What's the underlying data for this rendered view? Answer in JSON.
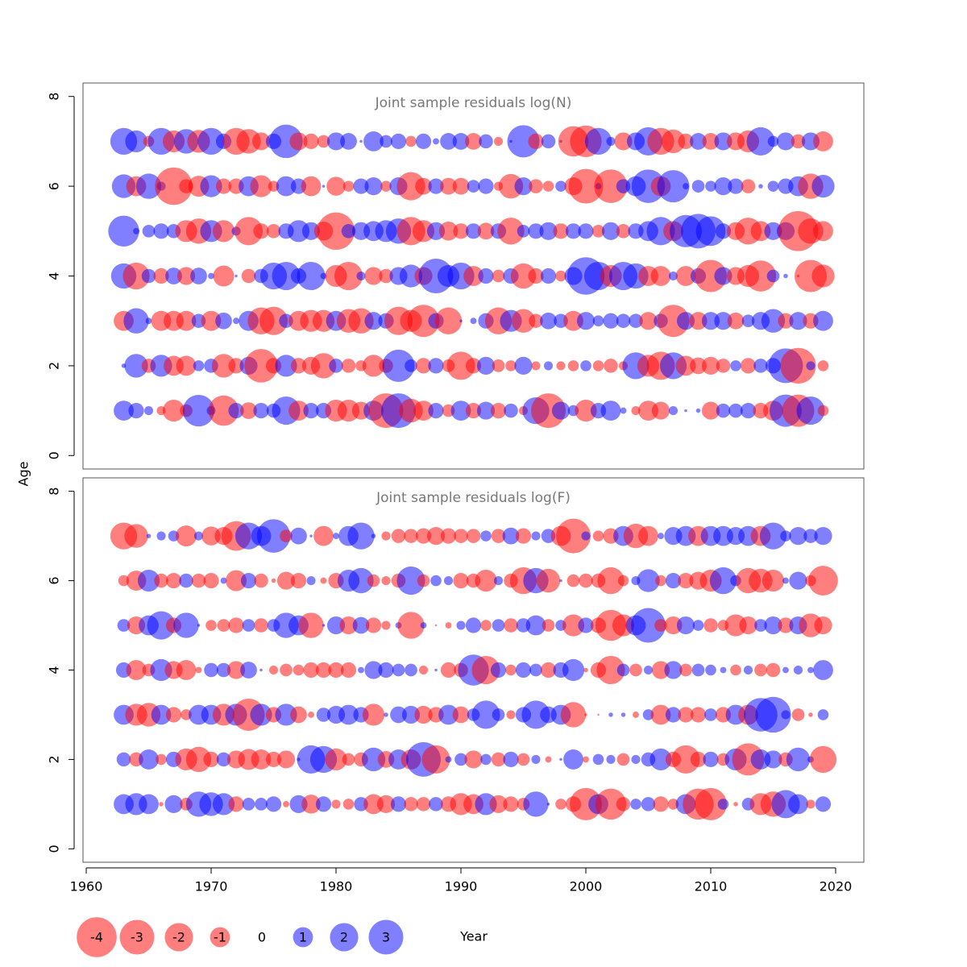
{
  "axis_labels": {
    "y": "Age",
    "x": "Year"
  },
  "legend": [
    -4,
    -3,
    -2,
    -1,
    0,
    1,
    2,
    3
  ],
  "pos_color": "#0000ff",
  "neg_color": "#ff0000",
  "alpha": 0.5,
  "chart_data": [
    {
      "type": "bubble",
      "title": "Joint sample residuals log(N)",
      "xlim": [
        1959.74,
        2022.26
      ],
      "ylim": [
        -0.3,
        8.3
      ],
      "yticks": [
        0,
        2,
        4,
        6,
        8
      ],
      "x": [
        1963,
        1964,
        1965,
        1966,
        1967,
        1968,
        1969,
        1970,
        1971,
        1972,
        1973,
        1974,
        1975,
        1976,
        1977,
        1978,
        1979,
        1980,
        1981,
        1982,
        1983,
        1984,
        1985,
        1986,
        1987,
        1988,
        1989,
        1990,
        1991,
        1992,
        1993,
        1994,
        1995,
        1996,
        1997,
        1998,
        1999,
        2000,
        2001,
        2002,
        2003,
        2004,
        2005,
        2006,
        2007,
        2008,
        2009,
        2010,
        2011,
        2012,
        2013,
        2014,
        2015,
        2016,
        2017,
        2018,
        2019
      ],
      "ages": [
        1,
        2,
        3,
        4,
        5,
        6,
        7
      ],
      "values": [
        [
          1.0,
          0.6,
          0.2,
          -0.2,
          -1.2,
          -0.4,
          2.5,
          0.2,
          -2.3,
          0.6,
          -0.7,
          0.6,
          0.5,
          2.0,
          -1.0,
          0.6,
          0.6,
          -1.2,
          -1.2,
          -0.8,
          1.0,
          -3.0,
          3.0,
          -1.4,
          -1.0,
          0.6,
          -0.4,
          1.0,
          -0.6,
          0.8,
          -0.6,
          0.5,
          -0.2,
          1.8,
          -3.0,
          0.8,
          0.3,
          -1.2,
          0.6,
          1.0,
          0.1,
          -0.2,
          -1.0,
          -0.8,
          0.2,
          0.02,
          0.05,
          -0.8,
          0.5,
          0.5,
          0.6,
          -0.6,
          -1.0,
          2.6,
          -2.6,
          2.0,
          -0.3
        ],
        [
          0.05,
          1.4,
          -0.5,
          1.2,
          -1.0,
          -1.0,
          0.3,
          0.5,
          -1.4,
          -0.6,
          0.8,
          -2.8,
          -0.6,
          1.2,
          -0.6,
          -0.8,
          -1.6,
          0.5,
          -0.5,
          -0.3,
          -1.2,
          -0.5,
          2.6,
          0.4,
          -0.6,
          0.6,
          -0.4,
          -2.0,
          -0.6,
          0.8,
          -0.4,
          -0.3,
          0.8,
          -0.2,
          0.2,
          -0.2,
          -0.3,
          0.3,
          -0.3,
          -0.5,
          -0.2,
          1.8,
          -1.2,
          -2.0,
          1.8,
          -1.0,
          -0.7,
          -0.8,
          -0.5,
          0.3,
          -0.6,
          0.5,
          0.6,
          3.0,
          -3.2,
          0.2,
          -0.3
        ],
        [
          -1.0,
          1.6,
          0.1,
          -1.0,
          -1.0,
          -1.0,
          0.5,
          -1.0,
          0.7,
          0.1,
          1.0,
          -1.8,
          -2.0,
          0.5,
          -1.0,
          -1.2,
          -1.2,
          1.0,
          -1.4,
          -1.6,
          0.8,
          0.6,
          -2.0,
          -1.2,
          -2.6,
          0.6,
          -1.8,
          0.02,
          0.1,
          0.6,
          -1.8,
          1.2,
          -1.4,
          -0.5,
          0.7,
          0.5,
          -1.0,
          0.8,
          0.3,
          0.6,
          0.5,
          0.5,
          -0.8,
          0.5,
          -2.6,
          0.8,
          -0.8,
          0.8,
          0.8,
          -0.7,
          0.4,
          0.8,
          1.4,
          -0.6,
          0.8,
          -0.6,
          1.0
        ],
        [
          1.6,
          -1.8,
          0.5,
          -0.6,
          0.7,
          -0.8,
          0.7,
          0.1,
          -1.1,
          0.02,
          -0.5,
          0.5,
          1.8,
          2.0,
          0.6,
          2.0,
          0.1,
          -1.2,
          -2.0,
          0.2,
          -0.8,
          -0.5,
          0.8,
          1.3,
          -0.8,
          3.0,
          1.2,
          1.8,
          -1.0,
          0.6,
          -0.4,
          0.6,
          -1.6,
          -0.6,
          0.6,
          -0.3,
          0.8,
          3.5,
          2.0,
          -1.2,
          2.0,
          1.6,
          -1.0,
          -1.0,
          0.2,
          -1.0,
          0.6,
          -2.6,
          0.8,
          -0.8,
          -1.2,
          -2.4,
          0.4,
          0.05,
          -0.02,
          -2.6,
          -1.3
        ],
        [
          2.4,
          0.1,
          0.4,
          0.6,
          0.5,
          -1.2,
          -1.6,
          1.2,
          -1.2,
          0.2,
          -2.0,
          -0.6,
          -0.5,
          0.6,
          1.2,
          0.8,
          -0.9,
          -3.5,
          0.5,
          0.8,
          1.0,
          1.2,
          1.6,
          -2.0,
          -1.2,
          0.8,
          -0.9,
          -0.6,
          0.6,
          -0.7,
          0.6,
          -1.8,
          0.4,
          0.6,
          0.8,
          -0.6,
          0.6,
          0.6,
          -0.4,
          0.8,
          -0.5,
          0.6,
          1.0,
          2.0,
          -1.0,
          2.6,
          3.0,
          2.2,
          0.6,
          -0.8,
          -1.8,
          -1.0,
          0.8,
          0.8,
          -4.0,
          -1.6,
          -1.0
        ],
        [
          1.4,
          -1.0,
          1.6,
          0.2,
          -3.5,
          -0.5,
          -1.1,
          1.2,
          -0.6,
          -0.6,
          1.0,
          -1.2,
          -0.3,
          1.0,
          0.6,
          -1.0,
          0.02,
          -0.9,
          -0.3,
          0.6,
          0.8,
          -0.3,
          0.8,
          -2.0,
          -0.7,
          0.6,
          -0.7,
          -0.7,
          0.4,
          0.6,
          -0.2,
          -1.5,
          0.8,
          -0.5,
          -0.3,
          0.3,
          -0.8,
          -3.0,
          0.1,
          -2.8,
          0.5,
          1.0,
          2.8,
          -1.0,
          2.6,
          0.1,
          0.4,
          0.3,
          0.8,
          0.6,
          -0.5,
          0.05,
          0.3,
          0.6,
          1.0,
          -1.6,
          1.3
        ],
        [
          1.8,
          1.2,
          -0.3,
          1.8,
          -1.2,
          1.5,
          -1.3,
          1.8,
          0.6,
          -1.8,
          -1.5,
          -0.8,
          0.6,
          2.8,
          -0.8,
          -0.6,
          -0.4,
          0.8,
          0.7,
          0.02,
          1.0,
          0.4,
          0.6,
          -0.3,
          0.6,
          0.1,
          0.7,
          0.7,
          -0.7,
          0.5,
          -0.2,
          0.02,
          2.6,
          -0.6,
          0.5,
          0.02,
          -2.3,
          -2.5,
          1.8,
          0.2,
          -0.8,
          0.8,
          2.0,
          -1.8,
          -1.4,
          -0.6,
          0.7,
          -0.7,
          0.8,
          -0.8,
          -1.2,
          2.0,
          0.3,
          0.8,
          -0.5,
          0.8,
          -1.0
        ]
      ]
    },
    {
      "type": "bubble",
      "title": "Joint sample residuals log(F)",
      "xlim": [
        1959.74,
        2022.26
      ],
      "ylim": [
        -0.3,
        8.3
      ],
      "yticks": [
        0,
        2,
        4,
        6,
        8
      ],
      "xticks": [
        1960,
        1970,
        1980,
        1990,
        2000,
        2010,
        2020
      ],
      "x": [
        1963,
        1964,
        1965,
        1966,
        1967,
        1968,
        1969,
        1970,
        1971,
        1972,
        1973,
        1974,
        1975,
        1976,
        1977,
        1978,
        1979,
        1980,
        1981,
        1982,
        1983,
        1984,
        1985,
        1986,
        1987,
        1988,
        1989,
        1990,
        1991,
        1992,
        1993,
        1994,
        1995,
        1996,
        1997,
        1998,
        1999,
        2000,
        2001,
        2002,
        2003,
        2004,
        2005,
        2006,
        2007,
        2008,
        2009,
        2010,
        2011,
        2012,
        2013,
        2014,
        2015,
        2016,
        2017,
        2018,
        2019
      ],
      "ages": [
        1,
        2,
        3,
        4,
        5,
        6,
        7
      ],
      "values": [
        [
          1.0,
          1.2,
          1.0,
          -0.05,
          0.8,
          -0.4,
          1.6,
          1.4,
          1.2,
          -0.6,
          0.4,
          0.4,
          0.6,
          -0.1,
          0.8,
          -0.9,
          0.6,
          -0.2,
          -0.3,
          0.5,
          -1.0,
          -0.8,
          0.6,
          -0.5,
          -0.5,
          0.5,
          -0.6,
          -1.2,
          -1.0,
          1.2,
          -0.8,
          -0.6,
          -0.4,
          1.6,
          0.02,
          -0.3,
          -0.6,
          -2.6,
          1.0,
          -2.4,
          -0.5,
          0.3,
          0.5,
          -0.6,
          -0.3,
          1.0,
          -2.4,
          -2.6,
          0.3,
          -0.05,
          0.4,
          -1.2,
          -1.6,
          2.0,
          1.0,
          -0.2,
          0.6
        ],
        [
          0.5,
          -0.5,
          1.0,
          -0.3,
          0.6,
          -1.2,
          -1.6,
          -0.6,
          0.5,
          -0.8,
          -1.1,
          -1.0,
          -0.6,
          -0.8,
          0.03,
          2.0,
          1.8,
          -1.2,
          -0.4,
          -0.5,
          1.4,
          -0.7,
          1.0,
          -1.0,
          3.0,
          -2.0,
          0.1,
          0.4,
          -0.8,
          0.3,
          -0.5,
          0.6,
          -0.4,
          0.2,
          -0.1,
          0.02,
          1.0,
          -0.1,
          0.3,
          0.2,
          -0.4,
          0.2,
          0.5,
          1.2,
          -0.6,
          -2.0,
          -0.6,
          0.6,
          -0.4,
          1.2,
          -2.6,
          1.0,
          0.8,
          -0.5,
          1.4,
          0.1,
          -1.8
        ],
        [
          1.0,
          -1.2,
          -1.4,
          1.0,
          -0.6,
          -0.3,
          1.0,
          1.0,
          -1.2,
          1.2,
          -2.6,
          1.2,
          -0.6,
          1.2,
          -0.7,
          -0.1,
          0.5,
          0.8,
          1.0,
          0.6,
          -1.2,
          0.05,
          0.7,
          0.8,
          -0.8,
          -0.6,
          1.0,
          -0.7,
          0.4,
          2.0,
          0.4,
          -0.2,
          0.6,
          2.0,
          0.7,
          1.0,
          -1.6,
          -0.02,
          -0.01,
          0.05,
          0.05,
          -0.1,
          0.3,
          -1.0,
          0.6,
          -0.6,
          -0.6,
          0.4,
          -0.6,
          1.0,
          -1.0,
          2.8,
          3.2,
          0.2,
          -0.4,
          -0.05,
          0.3
        ],
        [
          0.6,
          -1.0,
          -0.4,
          1.2,
          -0.8,
          -1.0,
          -0.1,
          0.5,
          0.5,
          -0.8,
          0.7,
          0.02,
          -0.2,
          -0.4,
          -0.3,
          -0.6,
          -0.6,
          -0.6,
          -0.6,
          0.1,
          0.8,
          0.6,
          0.4,
          0.4,
          -0.2,
          0.02,
          -0.6,
          -0.5,
          2.4,
          -2.0,
          0.6,
          -0.3,
          0.6,
          0.4,
          -0.6,
          0.6,
          1.2,
          -0.05,
          -0.6,
          -2.0,
          0.4,
          -0.4,
          0.2,
          -0.8,
          0.8,
          -0.4,
          0.4,
          0.3,
          0.1,
          -0.3,
          0.2,
          -0.4,
          -0.5,
          0.1,
          0.2,
          0.1,
          1.0
        ],
        [
          0.4,
          -0.8,
          1.0,
          2.0,
          -0.6,
          1.6,
          0.02,
          -0.3,
          -0.4,
          -0.6,
          0.4,
          -0.5,
          0.4,
          1.6,
          1.0,
          -1.6,
          0.02,
          0.8,
          -0.8,
          0.7,
          -0.6,
          -0.2,
          0.1,
          -1.8,
          0.1,
          -0.01,
          -0.1,
          0.2,
          0.6,
          -0.3,
          0.4,
          -0.5,
          0.5,
          1.0,
          -0.4,
          0.3,
          -1.2,
          0.6,
          -0.6,
          -2.4,
          -1.2,
          1.0,
          3.0,
          -0.4,
          -0.8,
          0.8,
          0.3,
          -0.5,
          -0.3,
          -1.2,
          -0.8,
          0.4,
          0.8,
          -0.6,
          0.8,
          -1.4,
          -0.8
        ],
        [
          -0.3,
          -1.0,
          1.2,
          -0.5,
          -0.6,
          0.5,
          -0.5,
          -0.6,
          0.1,
          -1.1,
          0.6,
          -0.5,
          -0.05,
          -0.8,
          -0.6,
          0.2,
          -0.1,
          -0.6,
          1.2,
          1.6,
          -0.4,
          -0.2,
          -0.5,
          2.0,
          -0.4,
          0.3,
          0.2,
          -0.6,
          -0.5,
          -1.2,
          0.2,
          -0.5,
          -1.8,
          1.6,
          -1.4,
          0.02,
          -0.4,
          -0.5,
          -0.5,
          -1.8,
          -0.3,
          0.2,
          1.3,
          -0.3,
          0.6,
          -0.6,
          -0.8,
          -1.2,
          1.8,
          0.3,
          -1.6,
          -1.4,
          -1.2,
          0.1,
          0.8,
          -0.3,
          -2.2
        ],
        [
          -1.8,
          -1.4,
          0.05,
          0.2,
          0.3,
          -1.1,
          0.2,
          -0.9,
          -0.8,
          -2.2,
          1.8,
          1.0,
          2.8,
          -0.4,
          0.7,
          0.02,
          -1.0,
          0.1,
          1.0,
          1.8,
          0.05,
          -0.2,
          -0.5,
          -0.5,
          -0.6,
          -0.8,
          -0.6,
          -0.5,
          -0.5,
          0.3,
          -0.5,
          0.7,
          -0.6,
          0.2,
          0.5,
          -1.0,
          -3.0,
          0.2,
          -0.3,
          -0.6,
          1.0,
          -1.5,
          -1.0,
          0.1,
          0.8,
          1.0,
          -1.0,
          1.0,
          1.0,
          0.8,
          1.0,
          -1.0,
          1.8,
          0.3,
          0.8,
          0.5,
          0.8
        ]
      ]
    }
  ]
}
